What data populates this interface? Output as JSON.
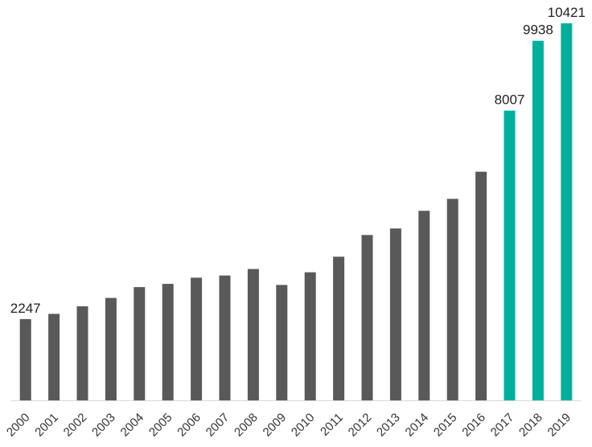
{
  "chart_data": {
    "type": "bar",
    "title": "",
    "xlabel": "",
    "ylabel": "",
    "grid": false,
    "legend": "none",
    "ylim": [
      0,
      10500
    ],
    "categories": [
      "2000",
      "2001",
      "2002",
      "2003",
      "2004",
      "2005",
      "2006",
      "2007",
      "2008",
      "2009",
      "2010",
      "2011",
      "2012",
      "2013",
      "2014",
      "2015",
      "2016",
      "2017",
      "2018",
      "2019"
    ],
    "values": [
      2247,
      2390,
      2600,
      2830,
      3130,
      3220,
      3390,
      3450,
      3630,
      3190,
      3540,
      3970,
      4570,
      4750,
      5240,
      5570,
      6320,
      8007,
      9938,
      10421
    ],
    "data_labels": [
      {
        "index": 0,
        "text": "2247"
      },
      {
        "index": 17,
        "text": "8007"
      },
      {
        "index": 18,
        "text": "9938"
      },
      {
        "index": 19,
        "text": "10421"
      }
    ],
    "colors": {
      "default_bar": "#595959",
      "highlight_bar": "#00b09b",
      "axis": "#d9d9d9"
    },
    "highlight_from_index": 17
  }
}
